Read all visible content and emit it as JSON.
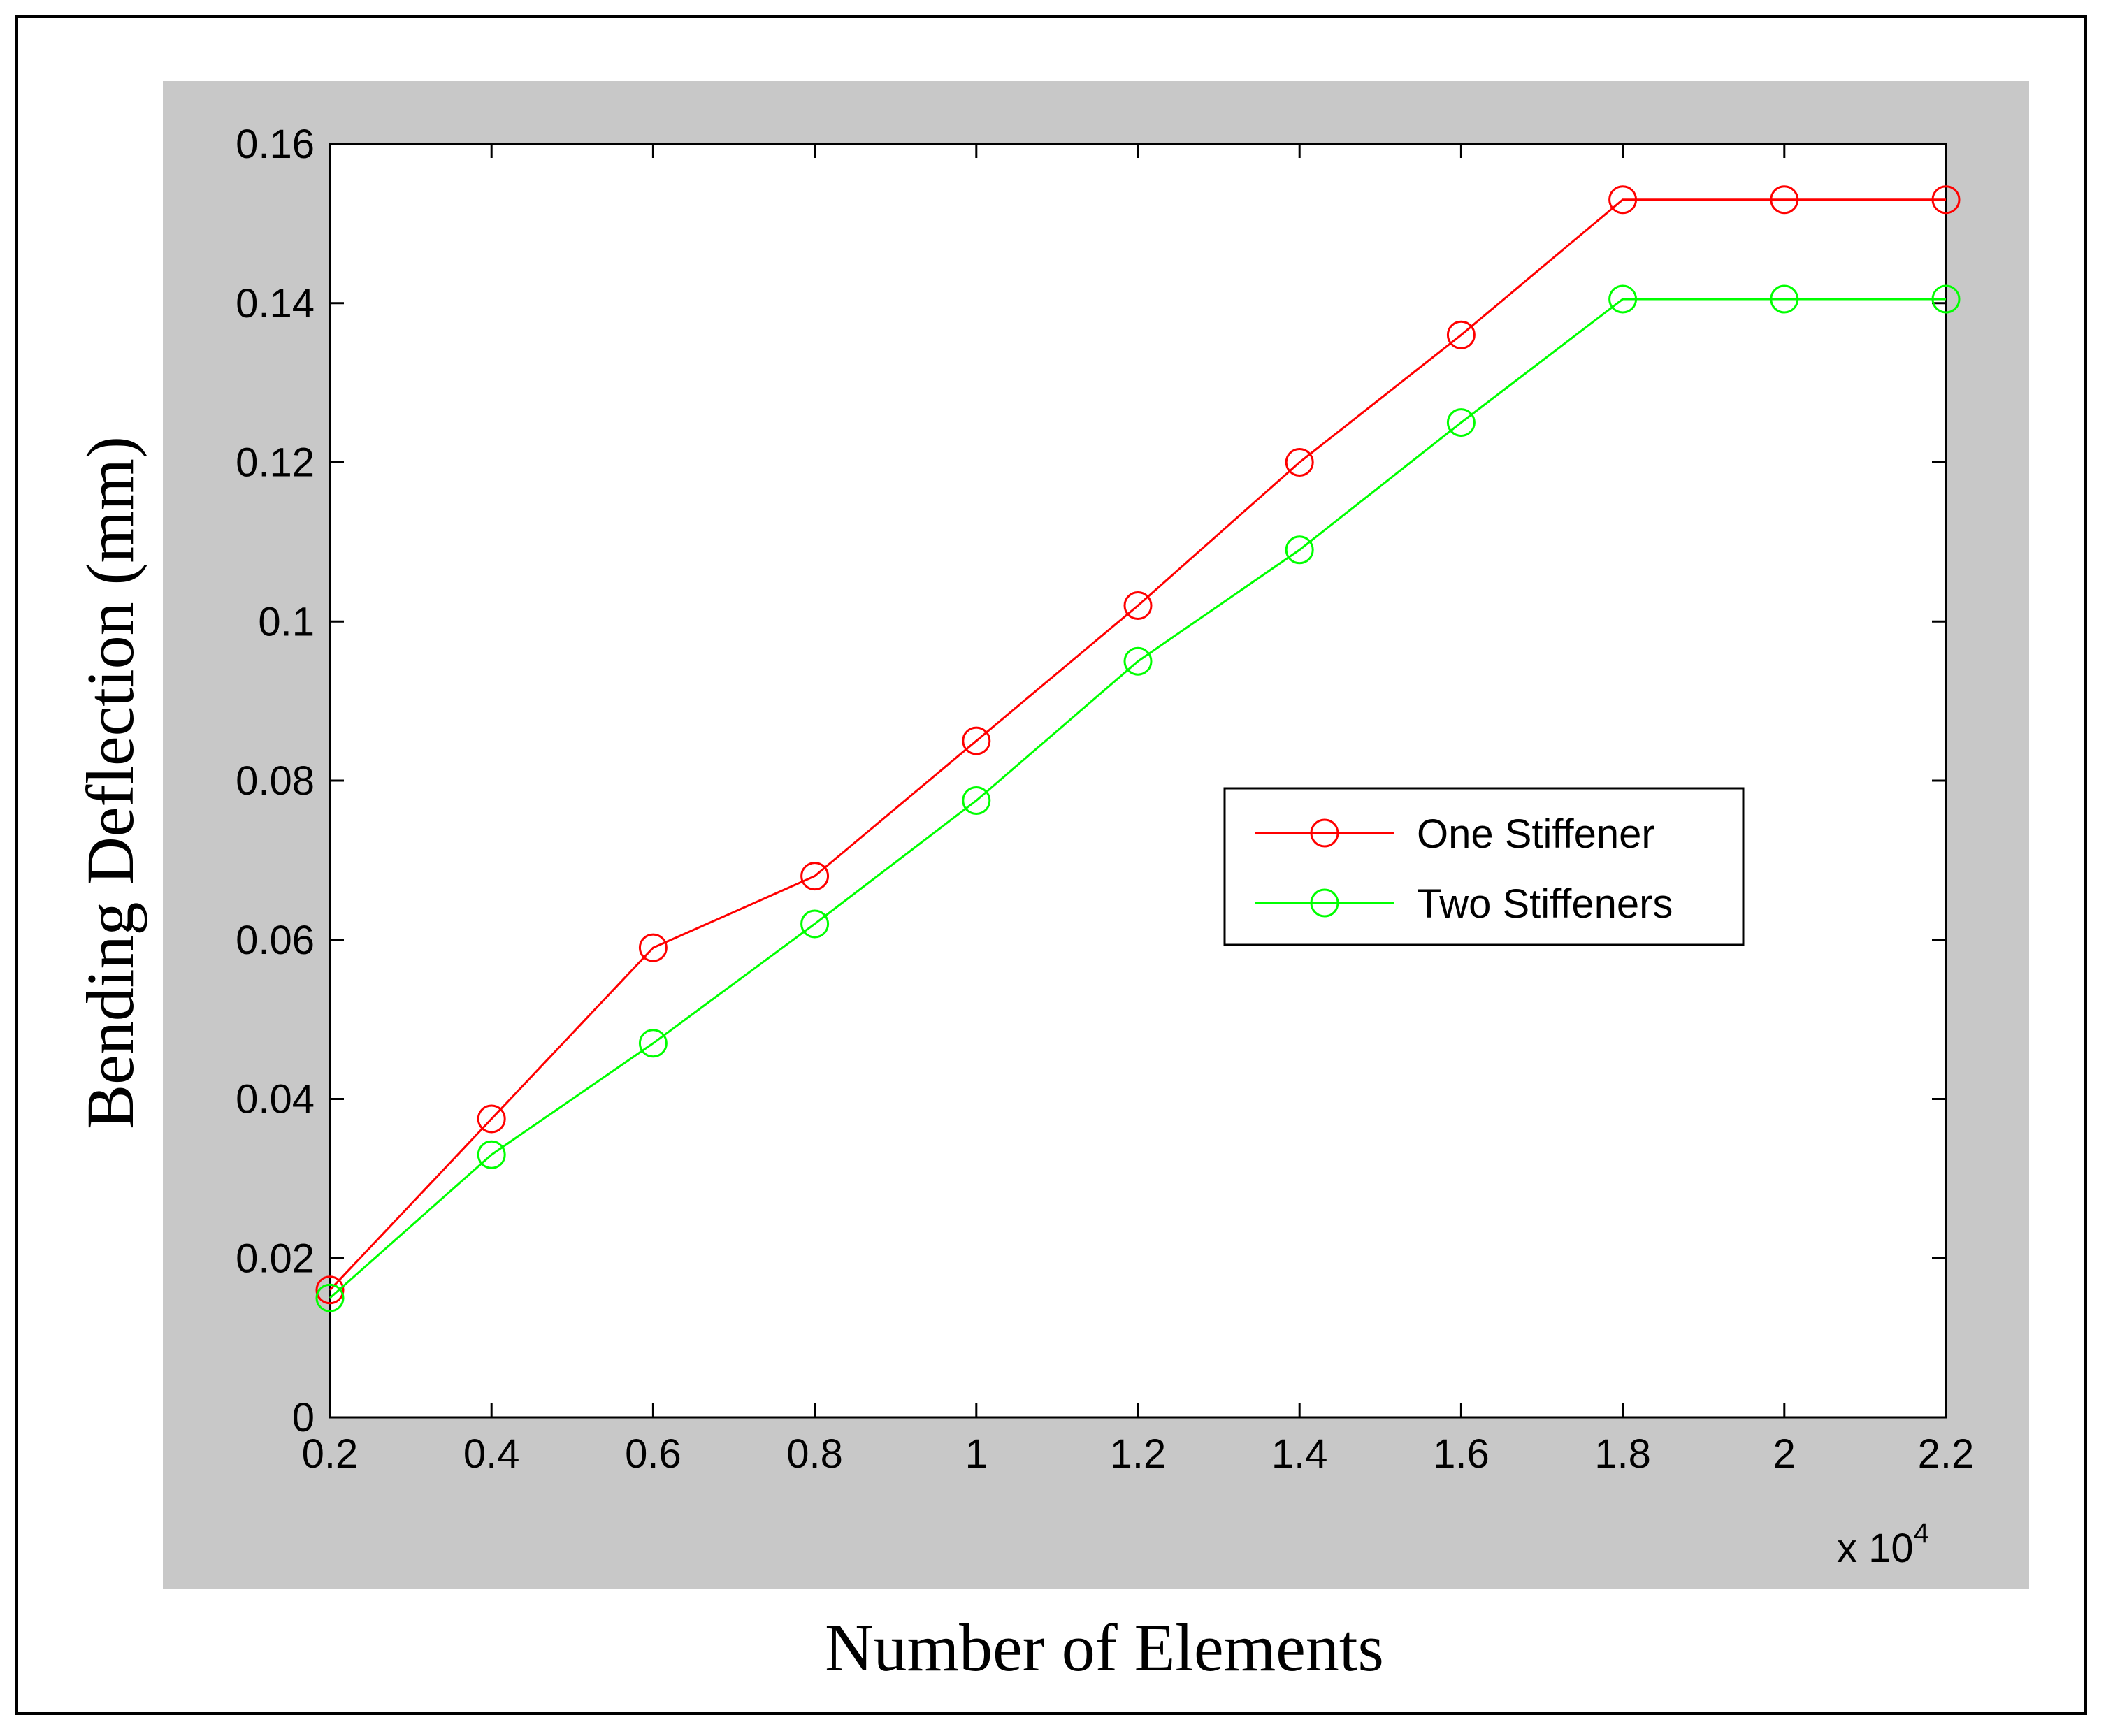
{
  "chart_data": {
    "type": "line",
    "xlabel": "Number of Elements",
    "ylabel": "Bending Deflection (mm)",
    "x_multiplier_label": "x 10",
    "x_multiplier_exponent": "4",
    "xlim": [
      0.2,
      2.2
    ],
    "ylim": [
      0,
      0.16
    ],
    "x_ticks": [
      "0.2",
      "0.4",
      "0.6",
      "0.8",
      "1",
      "1.2",
      "1.4",
      "1.6",
      "1.8",
      "2",
      "2.2"
    ],
    "y_ticks": [
      "0",
      "0.02",
      "0.04",
      "0.06",
      "0.08",
      "0.1",
      "0.12",
      "0.14",
      "0.16"
    ],
    "x": [
      0.2,
      0.4,
      0.6,
      0.8,
      1.0,
      1.2,
      1.4,
      1.6,
      1.8,
      2.0,
      2.2
    ],
    "series": [
      {
        "name": "One Stiffener",
        "color": "#ff0000",
        "marker": "circle",
        "values": [
          0.016,
          0.0375,
          0.059,
          0.068,
          0.085,
          0.102,
          0.12,
          0.136,
          0.153,
          0.153,
          0.153
        ]
      },
      {
        "name": "Two Stiffeners",
        "color": "#00ff00",
        "marker": "circle",
        "values": [
          0.015,
          0.033,
          0.047,
          0.062,
          0.0775,
          0.095,
          0.109,
          0.125,
          0.1405,
          0.1405,
          0.1405
        ]
      }
    ],
    "legend_position": "center-right",
    "grid": false
  }
}
